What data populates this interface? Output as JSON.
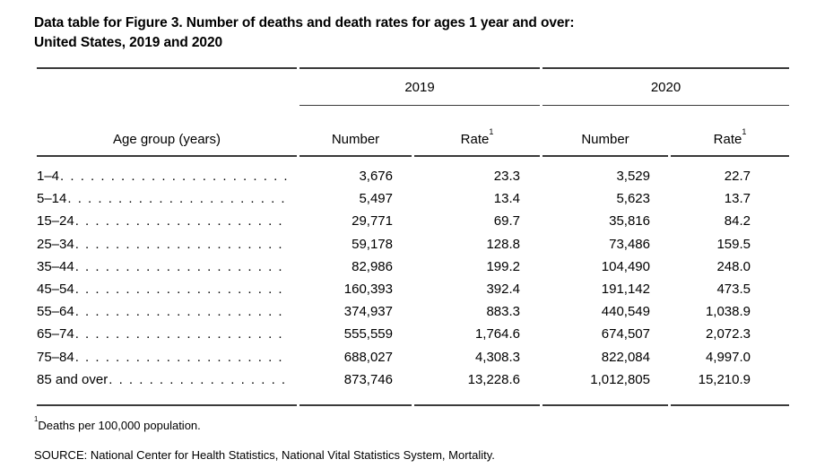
{
  "page": {
    "title_lines": [
      "Data table for Figure 3. Number of deaths and death rates for ages 1 year and over:",
      "United States, 2019 and 2020"
    ]
  },
  "table": {
    "year_headers": [
      "2019",
      "2020"
    ],
    "age_column_header": "Age group (years)",
    "number_header": "Number",
    "rate_header": "Rate",
    "rate_footnote_marker": "1",
    "rows": [
      {
        "age": "1–4",
        "number_2019": "3,676",
        "rate_2019": "23.3",
        "number_2020": "3,529",
        "rate_2020": "22.7"
      },
      {
        "age": "5–14",
        "number_2019": "5,497",
        "rate_2019": "13.4",
        "number_2020": "5,623",
        "rate_2020": "13.7"
      },
      {
        "age": "15–24",
        "number_2019": "29,771",
        "rate_2019": "69.7",
        "number_2020": "35,816",
        "rate_2020": "84.2"
      },
      {
        "age": "25–34",
        "number_2019": "59,178",
        "rate_2019": "128.8",
        "number_2020": "73,486",
        "rate_2020": "159.5"
      },
      {
        "age": "35–44",
        "number_2019": "82,986",
        "rate_2019": "199.2",
        "number_2020": "104,490",
        "rate_2020": "248.0"
      },
      {
        "age": "45–54",
        "number_2019": "160,393",
        "rate_2019": "392.4",
        "number_2020": "191,142",
        "rate_2020": "473.5"
      },
      {
        "age": "55–64",
        "number_2019": "374,937",
        "rate_2019": "883.3",
        "number_2020": "440,549",
        "rate_2020": "1,038.9"
      },
      {
        "age": "65–74",
        "number_2019": "555,559",
        "rate_2019": "1,764.6",
        "number_2020": "674,507",
        "rate_2020": "2,072.3"
      },
      {
        "age": "75–84",
        "number_2019": "688,027",
        "rate_2019": "4,308.3",
        "number_2020": "822,084",
        "rate_2020": "4,997.0"
      },
      {
        "age": "85 and over",
        "number_2019": "873,746",
        "rate_2019": "13,228.6",
        "number_2020": "1,012,805",
        "rate_2020": "15,210.9"
      }
    ]
  },
  "footnotes": {
    "rate_marker": "1",
    "rate_text": "Deaths per 100,000 population.",
    "source": "SOURCE: National Center for Health Statistics, National Vital Statistics System, Mortality."
  },
  "colors": {
    "rule": "#3a3a3a",
    "text": "#000000",
    "background": "#ffffff"
  },
  "chart_data": {
    "type": "table",
    "title": "Data table for Figure 3. Number of deaths and death rates for ages 1 year and over: United States, 2019 and 2020",
    "categories": [
      "1–4",
      "5–14",
      "15–24",
      "25–34",
      "35–44",
      "45–54",
      "55–64",
      "65–74",
      "75–84",
      "85 and over"
    ],
    "series": [
      {
        "name": "2019 Number",
        "values": [
          3676,
          5497,
          29771,
          59178,
          82986,
          160393,
          374937,
          555559,
          688027,
          873746
        ]
      },
      {
        "name": "2019 Rate (deaths per 100,000 population)",
        "values": [
          23.3,
          13.4,
          69.7,
          128.8,
          199.2,
          392.4,
          883.3,
          1764.6,
          4308.3,
          13228.6
        ]
      },
      {
        "name": "2020 Number",
        "values": [
          3529,
          5623,
          35816,
          73486,
          104490,
          191142,
          440549,
          674507,
          822084,
          1012805
        ]
      },
      {
        "name": "2020 Rate (deaths per 100,000 population)",
        "values": [
          22.7,
          13.7,
          84.2,
          159.5,
          248.0,
          473.5,
          1038.9,
          2072.3,
          4997.0,
          15210.9
        ]
      }
    ]
  }
}
